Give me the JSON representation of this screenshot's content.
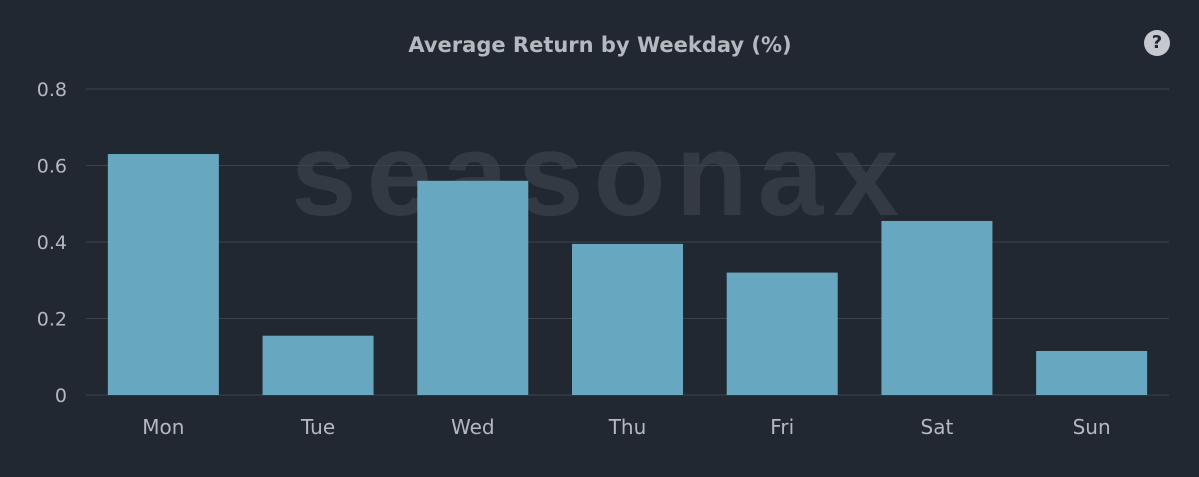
{
  "chart_data": {
    "type": "bar",
    "title": "Average Return by Weekday (%)",
    "watermark": "seasonax",
    "categories": [
      "Mon",
      "Tue",
      "Wed",
      "Thu",
      "Fri",
      "Sat",
      "Sun"
    ],
    "values": [
      0.63,
      0.155,
      0.56,
      0.395,
      0.32,
      0.455,
      0.115
    ],
    "ylim": [
      0,
      0.8
    ],
    "yticks": [
      0,
      0.2,
      0.4,
      0.6,
      0.8
    ],
    "ytick_labels": [
      "0",
      "0.2",
      "0.4",
      "0.6",
      "0.8"
    ],
    "xlabel": "",
    "ylabel": "",
    "grid": true,
    "legend": "none",
    "colors": {
      "background": "#222831",
      "bar": "#67a8c0",
      "grid": "#3c434d",
      "text": "#b4b8bf",
      "title": "#b4b8bf",
      "watermark": "#343a44"
    }
  },
  "help": {
    "icon": "question-circle-icon",
    "glyph": "?"
  }
}
